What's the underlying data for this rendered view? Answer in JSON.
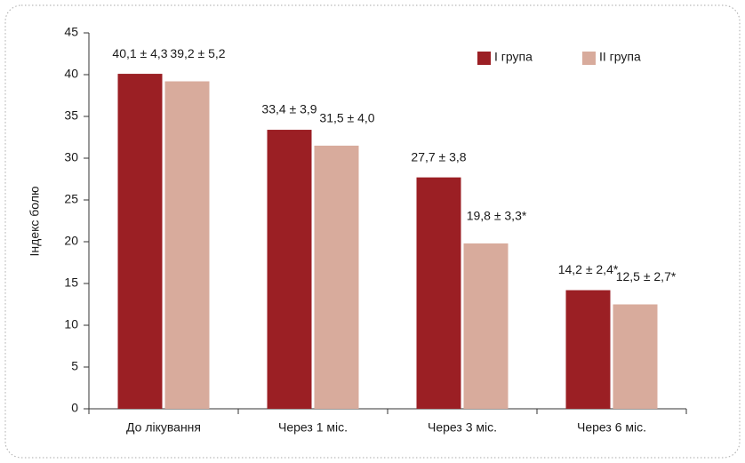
{
  "chart_data": {
    "type": "bar",
    "y_label": "Індекс болю",
    "categories": [
      "До лікування",
      "Через 1 міс.",
      "Через 3 міс.",
      "Через 6 міс."
    ],
    "series": [
      {
        "name": "I група",
        "color": "#9b1f24",
        "values": [
          40.1,
          33.4,
          27.7,
          14.2
        ],
        "value_labels": [
          "40,1 ± 4,3",
          "33,4 ± 3,9",
          "27,7 ± 3,8",
          "14,2 ± 2,4*"
        ]
      },
      {
        "name": "II група",
        "color": "#d8ab9c",
        "values": [
          39.2,
          31.5,
          19.8,
          12.5
        ],
        "value_labels": [
          "39,2 ± 5,2",
          "31,5 ± 4,0",
          "19,8 ± 3,3*",
          "12,5 ± 2,7*"
        ]
      }
    ],
    "ylim": [
      0,
      45
    ],
    "yticks": [
      0,
      5,
      10,
      15,
      20,
      25,
      30,
      35,
      40,
      45
    ],
    "legend": "top-right"
  }
}
